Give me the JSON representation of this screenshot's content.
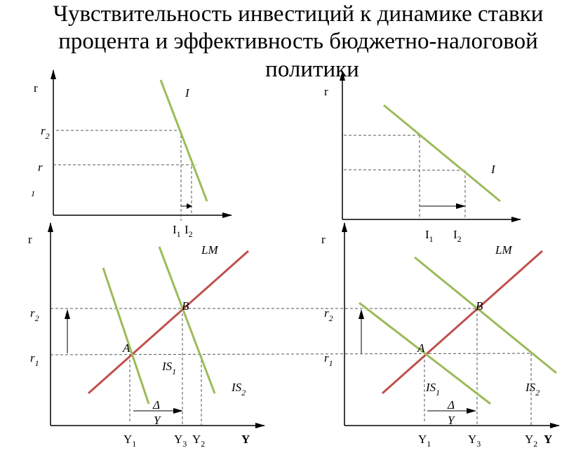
{
  "title": {
    "line1": "Чувствительность инвестиций к динамике ставки",
    "line2": "процента и эффективность бюджетно-налоговой",
    "line3": "политики"
  },
  "colors": {
    "is_curve": "#9bbb59",
    "lm_curve": "#c0504d",
    "investment_curve": "#9bbb59"
  },
  "top_left": {
    "r_axis": "r",
    "r2": "r",
    "r2_sub": "2",
    "r1": "r",
    "r1_sub": "1",
    "curve": "I",
    "i1": "I",
    "i1_sub": "1",
    "i2": "I",
    "i2_sub": "2"
  },
  "top_right": {
    "r_axis": "r",
    "curve": "I",
    "i1": "I",
    "i1_sub": "1",
    "i2": "I",
    "i2_sub": "2"
  },
  "bottom_left": {
    "r_axis": "r",
    "r2": "r",
    "r2_sub": "2",
    "r1": "r",
    "r1_sub": "1",
    "lm": "LM",
    "a": "A",
    "b": "B",
    "is1": "IS",
    "is1_sub": "1",
    "is2": "IS",
    "is2_sub": "2",
    "delta": "Δ",
    "delta_y": "Y",
    "y1": "Y",
    "y1_sub": "1",
    "y3": "Y",
    "y3_sub": "3",
    "y2": "Y",
    "y2_sub": "2",
    "y_axis": "Y"
  },
  "bottom_right": {
    "r_axis": "r",
    "r2": "r",
    "r2_sub": "2",
    "r1": "r",
    "r1_sub": "1",
    "lm": "LM",
    "a": "A",
    "b": "B",
    "is1": "IS",
    "is1_sub": "1",
    "is2": "IS",
    "is2_sub": "2",
    "delta": "Δ",
    "delta_y": "Y",
    "y1": "Y",
    "y1_sub": "1",
    "y3": "Y",
    "y3_sub": "3",
    "y2": "Y",
    "y2_sub": "2",
    "y_axis": "Y"
  }
}
